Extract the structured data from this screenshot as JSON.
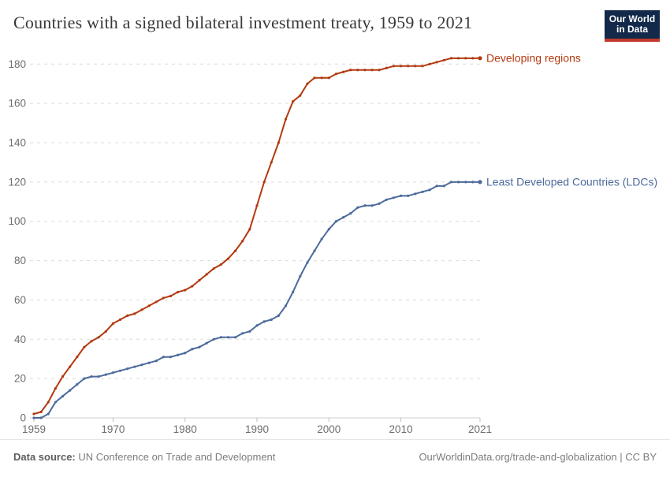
{
  "header": {
    "title": "Countries with a signed bilateral investment treaty, 1959 to 2021",
    "logo": {
      "line1": "Our World",
      "line2": "in Data",
      "bg_color": "#12294a",
      "stripe_color": "#c0392b"
    }
  },
  "chart_data": {
    "type": "line",
    "title": "Countries with a signed bilateral investment treaty, 1959 to 2021",
    "xlabel": "",
    "ylabel": "",
    "xlim": [
      1959,
      2021
    ],
    "ylim": [
      0,
      190
    ],
    "grid": "horizontal-dashed",
    "legend_position": "end-of-line-labels",
    "xticks": [
      1959,
      1970,
      1980,
      1990,
      2000,
      2010,
      2021
    ],
    "yticks": [
      0,
      20,
      40,
      60,
      80,
      100,
      120,
      140,
      160,
      180
    ],
    "x": [
      1959,
      1960,
      1961,
      1962,
      1963,
      1964,
      1965,
      1966,
      1967,
      1968,
      1969,
      1970,
      1971,
      1972,
      1973,
      1974,
      1975,
      1976,
      1977,
      1978,
      1979,
      1980,
      1981,
      1982,
      1983,
      1984,
      1985,
      1986,
      1987,
      1988,
      1989,
      1990,
      1991,
      1992,
      1993,
      1994,
      1995,
      1996,
      1997,
      1998,
      1999,
      2000,
      2001,
      2002,
      2003,
      2004,
      2005,
      2006,
      2007,
      2008,
      2009,
      2010,
      2011,
      2012,
      2013,
      2014,
      2015,
      2016,
      2017,
      2018,
      2019,
      2020,
      2021
    ],
    "series": [
      {
        "name": "Developing regions",
        "color": "#b23a10",
        "values": [
          2,
          3,
          8,
          15,
          21,
          26,
          31,
          36,
          39,
          41,
          44,
          48,
          50,
          52,
          53,
          55,
          57,
          59,
          61,
          62,
          64,
          65,
          67,
          70,
          73,
          76,
          78,
          81,
          85,
          90,
          96,
          108,
          120,
          130,
          140,
          152,
          161,
          164,
          170,
          173,
          173,
          173,
          175,
          176,
          177,
          177,
          177,
          177,
          177,
          178,
          179,
          179,
          179,
          179,
          179,
          180,
          181,
          182,
          183,
          183,
          183,
          183,
          183
        ]
      },
      {
        "name": "Least Developed Countries (LDCs)",
        "color": "#4c6a9c",
        "values": [
          0,
          0,
          2,
          8,
          11,
          14,
          17,
          20,
          21,
          21,
          22,
          23,
          24,
          25,
          26,
          27,
          28,
          29,
          31,
          31,
          32,
          33,
          35,
          36,
          38,
          40,
          41,
          41,
          41,
          43,
          44,
          47,
          49,
          50,
          52,
          57,
          64,
          72,
          79,
          85,
          91,
          96,
          100,
          102,
          104,
          107,
          108,
          108,
          109,
          111,
          112,
          113,
          113,
          114,
          115,
          116,
          118,
          118,
          120,
          120,
          120,
          120,
          120
        ]
      }
    ],
    "axis_colors": {
      "tick_label": "#6e6e6e",
      "gridline": "#dcdcdc",
      "axis_line": "#cccccc"
    }
  },
  "footer": {
    "datasource_label": "Data source:",
    "datasource_value": " UN Conference on Trade and Development",
    "right_text": "OurWorldinData.org/trade-and-globalization | CC BY"
  }
}
